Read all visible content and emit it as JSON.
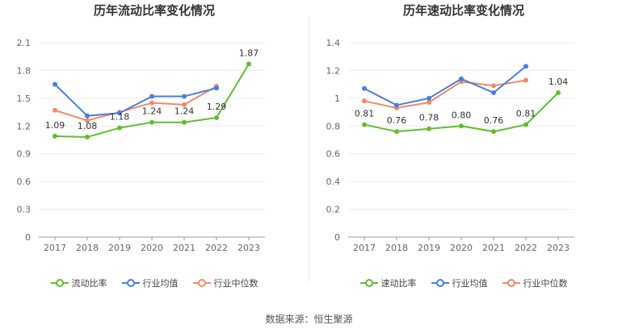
{
  "source": "数据来源：恒生聚源",
  "chart_data": [
    {
      "type": "line",
      "title": "历年流动比率变化情况",
      "categories": [
        "2017",
        "2018",
        "2019",
        "2020",
        "2021",
        "2022",
        "2023"
      ],
      "ylim": [
        0,
        2.1
      ],
      "yticks": [
        "0",
        "0.3",
        "0.6",
        "0.9",
        "1.2",
        "1.5",
        "1.8",
        "2.1"
      ],
      "grid": true,
      "legend_position": "bottom",
      "series": [
        {
          "name": "流动比率",
          "color": "#5cc02f",
          "values": [
            1.09,
            1.08,
            1.18,
            1.24,
            1.24,
            1.29,
            1.87
          ],
          "labels": [
            "1.09",
            "1.08",
            "1.18",
            "1.24",
            "1.24",
            "1.29",
            "1.87"
          ]
        },
        {
          "name": "行业均值",
          "color": "#4a7ee0",
          "values": [
            1.65,
            1.31,
            1.34,
            1.52,
            1.52,
            1.61,
            null
          ]
        },
        {
          "name": "行业中位数",
          "color": "#f08a65",
          "values": [
            1.37,
            1.26,
            1.35,
            1.45,
            1.43,
            1.63,
            null
          ]
        }
      ]
    },
    {
      "type": "line",
      "title": "历年速动比率变化情况",
      "categories": [
        "2017",
        "2018",
        "2019",
        "2020",
        "2021",
        "2022",
        "2023"
      ],
      "ylim": [
        0,
        1.4
      ],
      "yticks": [
        "0",
        "0.2",
        "0.4",
        "0.6",
        "0.8",
        "1",
        "1.2",
        "1.4"
      ],
      "grid": true,
      "legend_position": "bottom",
      "series": [
        {
          "name": "速动比率",
          "color": "#5cc02f",
          "values": [
            0.81,
            0.76,
            0.78,
            0.8,
            0.76,
            0.81,
            1.04
          ],
          "labels": [
            "0.81",
            "0.76",
            "0.78",
            "0.80",
            "0.76",
            "0.81",
            "1.04"
          ]
        },
        {
          "name": "行业均值",
          "color": "#4a7ee0",
          "values": [
            1.07,
            0.95,
            1.0,
            1.14,
            1.04,
            1.23,
            null
          ]
        },
        {
          "name": "行业中位数",
          "color": "#f08a65",
          "values": [
            0.98,
            0.93,
            0.97,
            1.12,
            1.09,
            1.13,
            null
          ]
        }
      ]
    }
  ]
}
